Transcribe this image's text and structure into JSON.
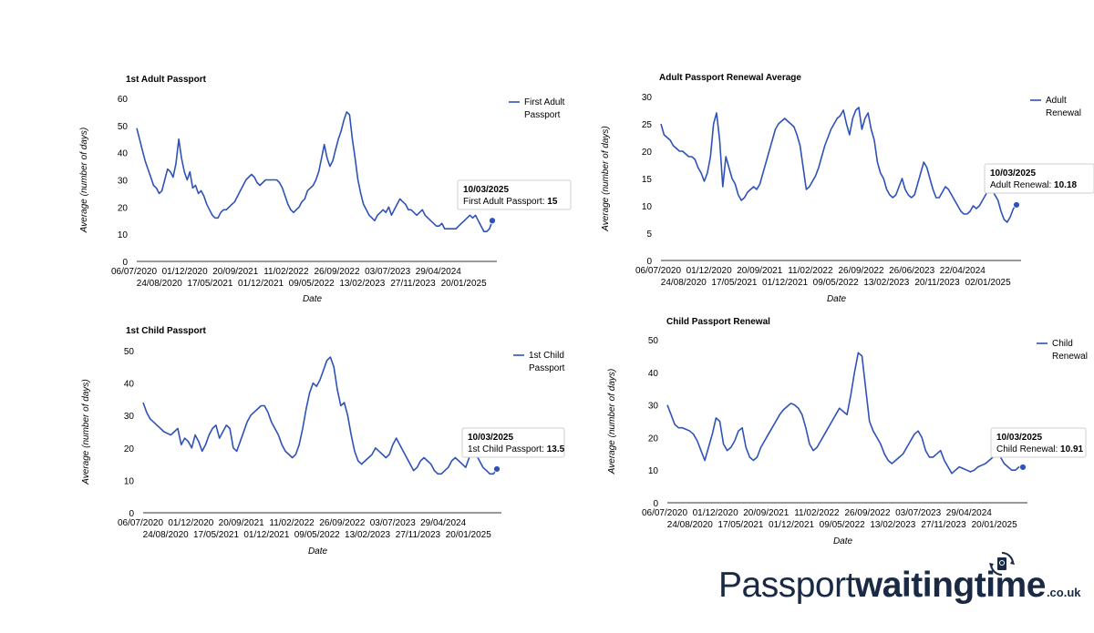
{
  "brand": {
    "prefix": "Passport",
    "bold": "waitingtime",
    "suffix": ".co.uk",
    "color": "#1a2a45"
  },
  "chart_data": [
    {
      "type": "line",
      "title": "1st Adult Passport",
      "xlabel": "Date",
      "ylabel": "Average (number of days)",
      "ylim": [
        0,
        60
      ],
      "yticks": [
        0,
        10,
        20,
        30,
        40,
        50,
        60
      ],
      "xticks_top": [
        "06/07/2020",
        "01/12/2020",
        "20/09/2021",
        "11/02/2022",
        "26/09/2022",
        "03/07/2023",
        "29/04/2024"
      ],
      "xticks_bottom": [
        "24/08/2020",
        "17/05/2021",
        "01/12/2021",
        "09/05/2022",
        "13/02/2023",
        "27/11/2023",
        "20/01/2025"
      ],
      "legend": [
        "First Adult",
        "Passport"
      ],
      "color": "#2e52b8",
      "series": [
        {
          "name": "First Adult Passport",
          "values": [
            49,
            45,
            41,
            37,
            34,
            31,
            28,
            27,
            25,
            26,
            30,
            34,
            33,
            31,
            36,
            45,
            38,
            33,
            30,
            33,
            27,
            28,
            25,
            26,
            24,
            21,
            19,
            17,
            16,
            16,
            18,
            19,
            19,
            20,
            21,
            22,
            24,
            26,
            28,
            30,
            31,
            32,
            31,
            29,
            28,
            29,
            30,
            30,
            30,
            30,
            30,
            29,
            27,
            24,
            21,
            19,
            18,
            19,
            20,
            22,
            23,
            26,
            27,
            28,
            30,
            33,
            38,
            43,
            38,
            35,
            37,
            41,
            45,
            48,
            52,
            55,
            54,
            45,
            38,
            30,
            25,
            21,
            19,
            17,
            16,
            15,
            17,
            18,
            19,
            18,
            20,
            17,
            19,
            21,
            23,
            22,
            21,
            19,
            19,
            18,
            17,
            18,
            19,
            17,
            16,
            15,
            14,
            13,
            13,
            14,
            12,
            12,
            12,
            12,
            12,
            13,
            14,
            15,
            16,
            17,
            16,
            17,
            15,
            13,
            11,
            11,
            12,
            15
          ]
        }
      ],
      "tooltip": {
        "date": "10/03/2025",
        "label": "First Adult Passport: ",
        "value": "15"
      }
    },
    {
      "type": "line",
      "title": "Adult Passport Renewal Average",
      "xlabel": "Date",
      "ylabel": "Average (number of days)",
      "ylim": [
        0,
        30
      ],
      "yticks": [
        0,
        5,
        10,
        15,
        20,
        25,
        30
      ],
      "xticks_top": [
        "06/07/2020",
        "01/12/2020",
        "20/09/2021",
        "11/02/2022",
        "26/09/2022",
        "26/06/2023",
        "22/04/2024"
      ],
      "xticks_bottom": [
        "24/08/2020",
        "17/05/2021",
        "01/12/2021",
        "09/05/2022",
        "13/02/2023",
        "20/11/2023",
        "02/01/2025"
      ],
      "legend": [
        "Adult",
        "Renewal"
      ],
      "color": "#2e52b8",
      "series": [
        {
          "name": "Adult Renewal",
          "values": [
            25,
            23,
            22.5,
            22,
            21,
            20.5,
            20,
            20,
            19.5,
            19,
            19,
            18.5,
            17,
            16,
            14.5,
            16,
            19,
            25,
            27,
            22,
            13.5,
            19,
            17,
            15,
            14,
            12,
            11,
            11.5,
            12.5,
            13,
            13.5,
            13,
            14,
            16,
            18,
            20,
            22,
            24,
            25,
            25.5,
            26,
            25.5,
            25,
            24.5,
            23,
            21,
            17,
            13,
            13.5,
            14.5,
            15.5,
            17,
            19,
            21,
            22.5,
            24,
            25,
            26,
            26.5,
            27.5,
            25,
            23,
            26,
            27.5,
            28,
            24,
            26,
            27,
            24,
            22,
            18,
            16,
            15,
            13,
            12,
            11.5,
            12,
            13.5,
            15,
            13,
            12,
            11.5,
            12,
            14,
            16,
            18,
            17,
            15,
            13,
            11.5,
            11.5,
            12.5,
            13.5,
            13,
            12,
            11,
            10,
            9,
            8.5,
            8.5,
            9,
            10,
            9.5,
            10,
            11,
            12,
            13,
            13,
            12,
            11,
            9,
            7.5,
            7,
            8,
            9.5,
            10.18
          ]
        }
      ],
      "tooltip": {
        "date": "10/03/2025",
        "label": "Adult Renewal: ",
        "value": "10.18"
      }
    },
    {
      "type": "line",
      "title": "1st Child Passport",
      "xlabel": "Date",
      "ylabel": "Average (number of days)",
      "ylim": [
        0,
        50
      ],
      "yticks": [
        0,
        10,
        20,
        30,
        40,
        50
      ],
      "xticks_top": [
        "06/07/2020",
        "01/12/2020",
        "20/09/2021",
        "11/02/2022",
        "26/09/2022",
        "03/07/2023",
        "29/04/2024"
      ],
      "xticks_bottom": [
        "24/08/2020",
        "17/05/2021",
        "01/12/2021",
        "09/05/2022",
        "13/02/2023",
        "27/11/2023",
        "20/01/2025"
      ],
      "legend": [
        "1st Child",
        "Passport"
      ],
      "color": "#2e52b8",
      "series": [
        {
          "name": "1st Child Passport",
          "values": [
            34,
            31,
            29,
            28,
            27,
            26,
            25,
            24.5,
            24,
            25,
            26,
            21,
            23,
            22,
            20,
            24,
            22,
            19,
            21,
            24,
            26,
            27,
            23,
            25,
            27,
            26,
            20,
            19,
            22,
            25,
            28,
            30,
            31,
            32,
            33,
            33,
            31,
            28,
            26,
            24,
            21,
            19,
            18,
            17,
            18,
            21,
            26,
            32,
            37,
            40,
            39,
            41,
            44,
            47,
            48,
            45,
            38,
            33,
            34,
            30,
            24,
            19,
            16,
            15,
            16,
            17,
            18,
            20,
            19,
            18,
            17,
            18,
            21,
            23,
            21,
            19,
            17,
            15,
            13,
            14,
            16,
            17,
            16,
            15,
            13,
            12,
            12,
            13,
            14,
            16,
            17,
            16,
            15,
            14,
            17,
            19,
            18,
            16,
            14,
            13,
            12,
            12,
            13.5
          ]
        }
      ],
      "tooltip": {
        "date": "10/03/2025",
        "label": "1st Child Passport: ",
        "value": "13.5"
      }
    },
    {
      "type": "line",
      "title": "Child Passport Renewal",
      "xlabel": "Date",
      "ylabel": "Average (number of days)",
      "ylim": [
        0,
        50
      ],
      "yticks": [
        0,
        10,
        20,
        30,
        40,
        50
      ],
      "xticks_top": [
        "06/07/2020",
        "01/12/2020",
        "20/09/2021",
        "11/02/2022",
        "26/09/2022",
        "03/07/2023",
        "29/04/2024"
      ],
      "xticks_bottom": [
        "24/08/2020",
        "17/05/2021",
        "01/12/2021",
        "09/05/2022",
        "13/02/2023",
        "27/11/2023",
        "20/01/2025"
      ],
      "legend": [
        "Child",
        "Renewal"
      ],
      "color": "#2e52b8",
      "series": [
        {
          "name": "Child Renewal",
          "values": [
            30,
            27,
            24,
            23,
            23,
            22.5,
            22,
            21,
            19,
            16,
            13,
            17,
            21,
            26,
            25,
            18,
            16,
            17,
            19,
            22,
            23,
            17,
            14,
            13,
            14,
            17,
            19,
            21,
            23,
            25,
            27,
            28.5,
            29.5,
            30.5,
            30,
            29,
            27,
            23,
            18,
            16,
            17,
            19,
            21,
            23,
            25,
            27,
            29,
            28,
            27,
            33,
            40,
            46,
            45,
            35,
            25,
            22,
            20,
            18,
            15,
            13,
            12,
            13,
            14,
            15,
            17,
            19,
            21,
            22,
            20,
            16,
            14,
            14,
            15,
            16,
            13,
            11,
            9,
            10,
            11,
            10.5,
            10,
            9.5,
            10,
            11,
            11.5,
            12,
            13,
            14,
            15,
            14,
            12,
            11,
            10,
            10,
            11,
            10.91
          ]
        }
      ],
      "tooltip": {
        "date": "10/03/2025",
        "label": "Child Renewal: ",
        "value": "10.91"
      }
    }
  ]
}
